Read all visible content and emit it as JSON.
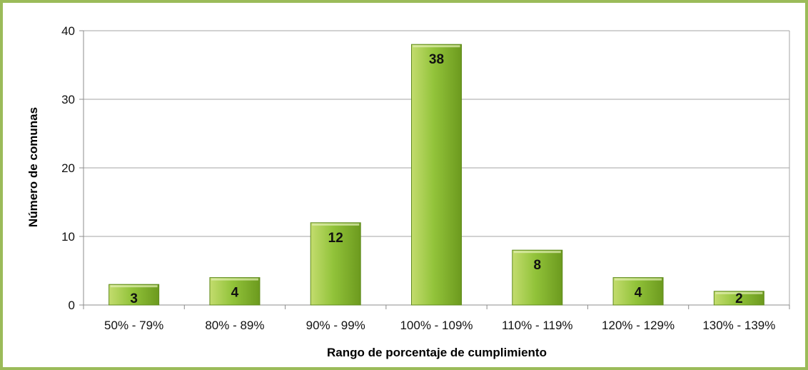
{
  "chart_data": {
    "type": "bar",
    "categories": [
      "50% - 79%",
      "80% - 89%",
      "90% - 99%",
      "100% - 109%",
      "110% - 119%",
      "120% - 129%",
      "130% - 139%"
    ],
    "values": [
      3,
      4,
      12,
      38,
      8,
      4,
      2
    ],
    "data_labels": [
      "3",
      "4",
      "12",
      "38",
      "8",
      "4",
      "2"
    ],
    "title": "",
    "xlabel": "Rango de porcentaje de cumplimiento",
    "ylabel": "Número de comunas",
    "ylim": [
      0,
      40
    ],
    "yticks": [
      0,
      10,
      20,
      30,
      40
    ],
    "grid": true,
    "legend": "none",
    "colors": {
      "border": "#9bbb59",
      "bar_light": "#c3dc6e",
      "bar_mid": "#92c33a",
      "bar_dark": "#6c9a1e",
      "bar_edge": "#5f8a1c",
      "grid": "#a6a6a6",
      "axis": "#8c8c8c"
    }
  }
}
